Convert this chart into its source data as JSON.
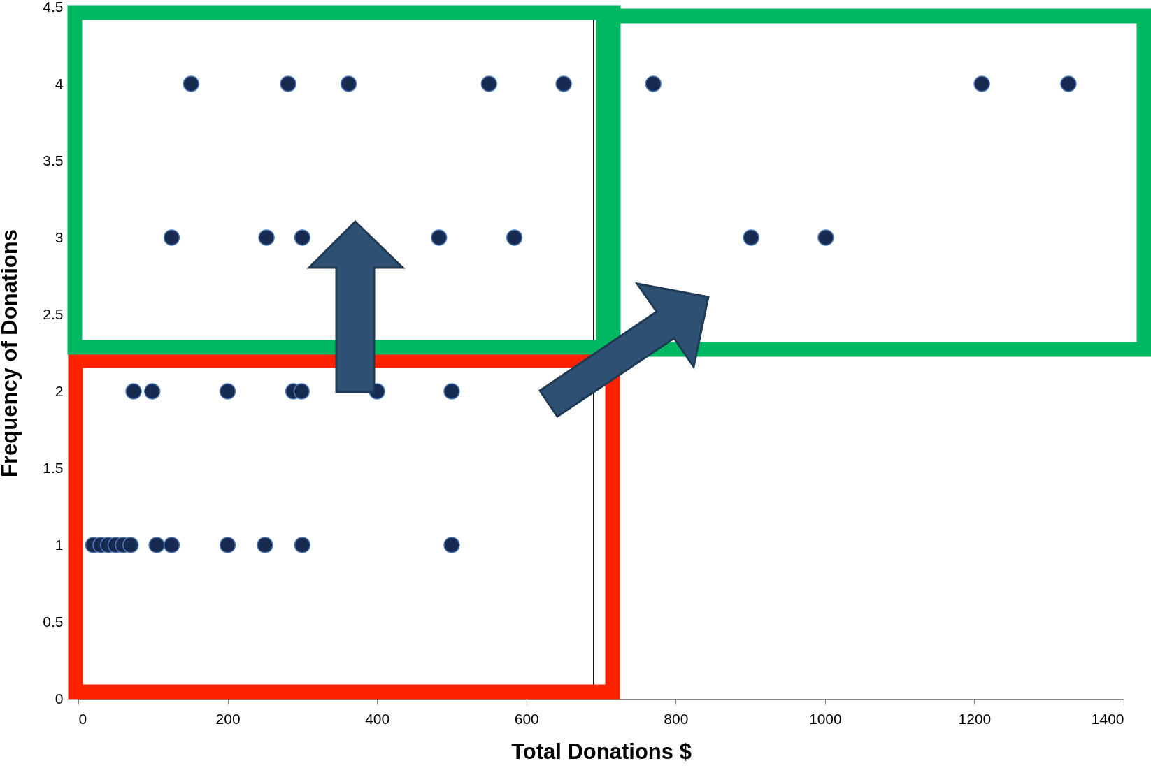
{
  "chart_data": {
    "type": "scatter",
    "xlabel": "Total Donations $",
    "ylabel": "Frequency of Donations",
    "x": [
      151,
      281,
      362,
      550,
      650,
      770,
      1210,
      1326,
      125,
      252,
      300,
      483,
      584,
      901,
      1001,
      74,
      99,
      200,
      288,
      299,
      400,
      500,
      20,
      30,
      40,
      50,
      60,
      70,
      105,
      125,
      200,
      250,
      300,
      500
    ],
    "series": [
      {
        "color": "#172a4f",
        "values": [
          4,
          4,
          4,
          4,
          4,
          4,
          4,
          4,
          3,
          3,
          3,
          3,
          3,
          3,
          3,
          2,
          2,
          2,
          2,
          2,
          2,
          2,
          1,
          1,
          1,
          1,
          1,
          1,
          1,
          1,
          1,
          1,
          1,
          1
        ]
      }
    ],
    "xlim": [
      0,
      1400
    ],
    "xticks": [
      0,
      200,
      400,
      600,
      800,
      1000,
      1200,
      1400
    ],
    "ylim": [
      0,
      4.5
    ],
    "yticks": [
      0,
      0.5,
      1,
      1.5,
      2,
      2.5,
      3,
      3.5,
      4,
      4.5
    ],
    "ref_lines": [
      {
        "axis": "x",
        "value": 690,
        "color": "#000000"
      }
    ],
    "marker": "circle",
    "grid": false
  }
}
